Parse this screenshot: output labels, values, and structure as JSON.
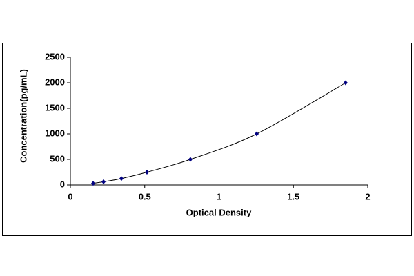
{
  "chart_data": {
    "type": "scatter",
    "x_label": "Optical Density",
    "y_label": "Concentration(pg/mL)",
    "x": [
      0.153,
      0.223,
      0.343,
      0.515,
      0.807,
      1.253,
      1.851
    ],
    "values": [
      31.25,
      62.5,
      125,
      250,
      500,
      1000,
      2000
    ],
    "color": "#000080",
    "line_color": "#000000",
    "smooth_line": true,
    "xlim": [
      0,
      2
    ],
    "xticks": [
      0,
      0.5,
      1,
      1.5,
      2
    ],
    "ylim": [
      0,
      2500
    ],
    "yticks": [
      0,
      500,
      1000,
      1500,
      2000,
      2500
    ]
  }
}
